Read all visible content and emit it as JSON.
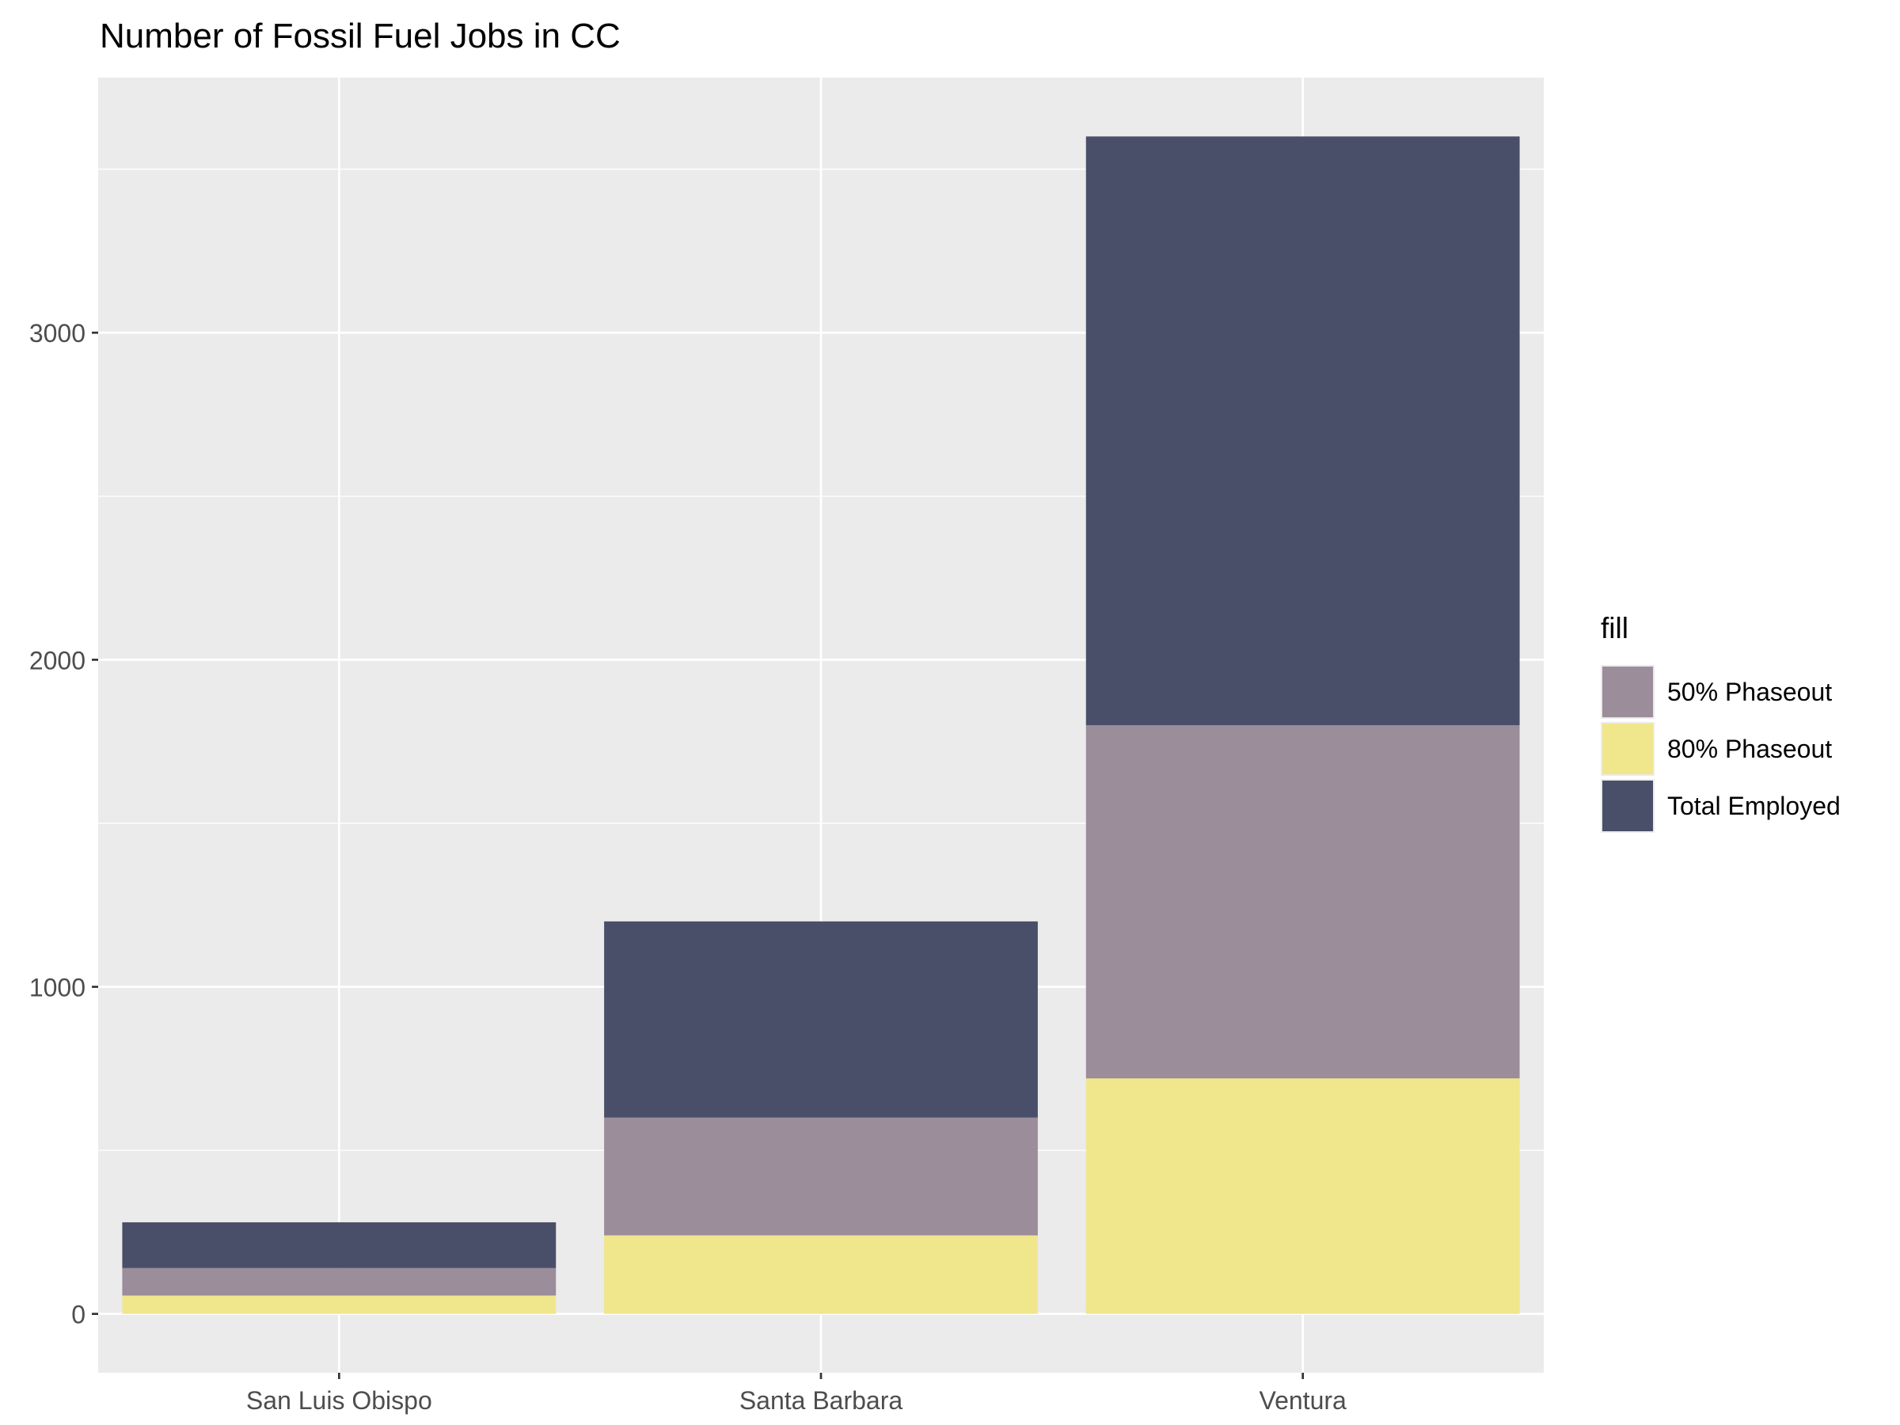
{
  "chart_data": {
    "type": "bar",
    "stacked": true,
    "title": "Number of Fossil Fuel Jobs in CC",
    "xlabel": "",
    "ylabel": "",
    "categories": [
      "San Luis Obispo",
      "Santa Barbara",
      "Ventura"
    ],
    "y_ticks": [
      0,
      1000,
      2000,
      3000
    ],
    "ylim": [
      -180,
      3780
    ],
    "grid": true,
    "legend": {
      "title": "fill",
      "placement": "right",
      "entries": [
        "50% Phaseout",
        "80% Phaseout",
        "Total Employed"
      ]
    },
    "series": [
      {
        "name": "80% Phaseout",
        "values": [
          56,
          240,
          720
        ],
        "color": "#F0E68C"
      },
      {
        "name": "50% Phaseout",
        "values": [
          84,
          360,
          1080
        ],
        "color": "#9B8D9A"
      },
      {
        "name": "Total Employed",
        "values": [
          140,
          600,
          1800
        ],
        "color": "#4A4F69"
      }
    ],
    "legend_colors": {
      "50% Phaseout": "#9B8D9A",
      "80% Phaseout": "#F0E68C",
      "Total Employed": "#4A4F69"
    },
    "panel_color": "#EBEBEB",
    "grid_color": "#FFFFFF"
  }
}
